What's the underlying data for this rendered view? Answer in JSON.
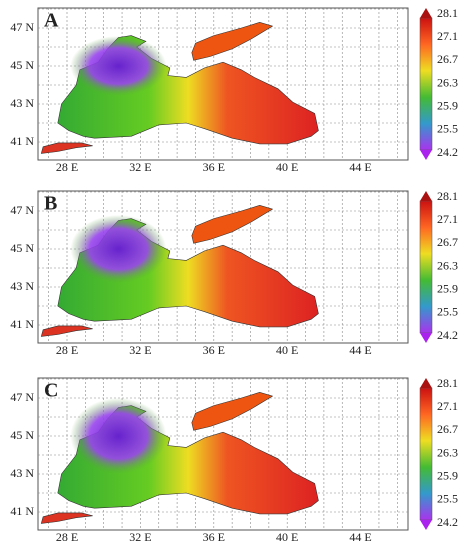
{
  "panels": [
    {
      "label": "A"
    },
    {
      "label": "B"
    },
    {
      "label": "C"
    }
  ],
  "lat_labels": [
    "47 N",
    "45 N",
    "43 N",
    "41 N"
  ],
  "lon_labels": [
    "28 E",
    "32 E",
    "36 E",
    "40 E",
    "44 E"
  ],
  "colorbar_labels": [
    "28.1",
    "27.1",
    "26.7",
    "26.3",
    "25.9",
    "25.5",
    "24.2"
  ]
}
